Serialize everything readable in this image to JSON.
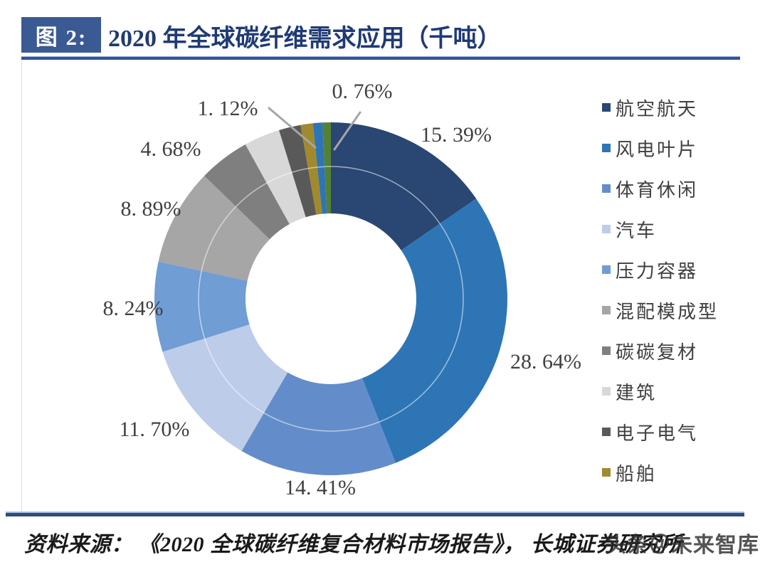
{
  "header": {
    "figure_tag": "图 2:",
    "title": "2020 年全球碳纤维需求应用（千吨）"
  },
  "footer": {
    "source": "资料来源： 《2020 全球碳纤维复合材料市场报告》， 长城证券研究所",
    "watermark": "头条＠未来智库"
  },
  "colors": {
    "title_navy": "#1F3A75",
    "tag_box": "#3A5A94",
    "header_rule": "#2F5496",
    "bottom_rule": "#2E4C7C",
    "label_text": "#3F3F3F",
    "leader_line": "#A6A6A6"
  },
  "chart_data": {
    "type": "pie",
    "subtype": "doughnut",
    "title": "2020 年全球碳纤维需求应用（千吨）",
    "legend_position": "right",
    "start_angle_deg": 0,
    "clockwise": true,
    "segments": [
      {
        "label": "航空航天",
        "value": 15.39,
        "display": "15. 39%",
        "color": "#2A4673",
        "in_legend": true
      },
      {
        "label": "风电叶片",
        "value": 28.64,
        "display": "28. 64%",
        "color": "#2E75B6",
        "in_legend": true
      },
      {
        "label": "体育休闲",
        "value": 14.41,
        "display": "14. 41%",
        "color": "#638DCA",
        "in_legend": true
      },
      {
        "label": "汽车",
        "value": 11.7,
        "display": "11. 70%",
        "color": "#BDCCE9",
        "in_legend": true
      },
      {
        "label": "压力容器",
        "value": 8.24,
        "display": "8. 24%",
        "color": "#6F9DD4",
        "in_legend": true
      },
      {
        "label": "混配模成型",
        "value": 8.89,
        "display": "8. 89%",
        "color": "#A6A6A6",
        "in_legend": true
      },
      {
        "label": "碳碳复材",
        "value": 4.68,
        "display": "4. 68%",
        "color": "#7F7F7F",
        "in_legend": true
      },
      {
        "label": "建筑",
        "value": 3.3,
        "display": "",
        "color": "#D8D8D8",
        "in_legend": true
      },
      {
        "label": "电子电气",
        "value": 2.0,
        "display": "",
        "color": "#595959",
        "in_legend": true
      },
      {
        "label": "船舶",
        "value": 1.12,
        "display": "1. 12%",
        "color": "#A08A2D",
        "in_legend": true
      },
      {
        "label": "unlabeled-blue-sliver",
        "value": 0.87,
        "display": "",
        "color": "#2E75B6",
        "in_legend": false
      },
      {
        "label": "unlabeled-green-sliver",
        "value": 0.76,
        "display": "0. 76%",
        "color": "#538135",
        "in_legend": false
      }
    ]
  }
}
